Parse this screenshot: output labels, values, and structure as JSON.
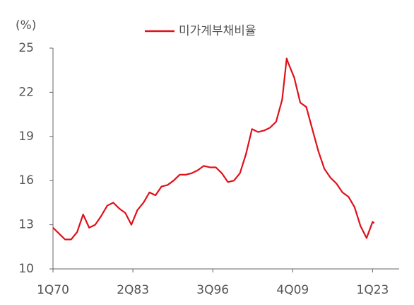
{
  "chart_data": {
    "type": "line",
    "y_label": "(%)",
    "x": [
      1970,
      1971,
      1972,
      1973,
      1974,
      1975,
      1976,
      1977,
      1978,
      1979,
      1980,
      1981,
      1982,
      1983,
      1984,
      1985,
      1986,
      1987,
      1988,
      1989,
      1990,
      1991,
      1992,
      1993,
      1994,
      1995,
      1996,
      1997,
      1998,
      1999,
      2000,
      2001,
      2002,
      2003,
      2004,
      2005,
      2006,
      2007,
      2008,
      2008.75,
      2009,
      2010,
      2011,
      2012,
      2013,
      2014,
      2015,
      2016,
      2017,
      2018,
      2019,
      2020,
      2021,
      2022,
      2023,
      2023.25
    ],
    "series": [
      {
        "name": "미가계부채비율",
        "color": "#e0101a",
        "values": [
          12.8,
          12.4,
          12.0,
          12.0,
          12.5,
          13.7,
          12.8,
          13.0,
          13.6,
          14.3,
          14.5,
          14.1,
          13.8,
          13.0,
          14.0,
          14.5,
          15.2,
          15.0,
          15.6,
          15.7,
          16.0,
          16.4,
          16.4,
          16.5,
          16.7,
          17.0,
          16.9,
          16.9,
          16.5,
          15.9,
          16.0,
          16.5,
          17.8,
          19.5,
          19.3,
          19.4,
          19.6,
          20.0,
          21.5,
          24.3,
          24.0,
          23.0,
          21.3,
          21.0,
          19.5,
          18.0,
          16.8,
          16.2,
          15.8,
          15.2,
          14.9,
          14.2,
          12.9,
          12.1,
          13.2,
          13.1
        ]
      }
    ],
    "xlim": [
      1970,
      2027.4
    ],
    "xticks": [
      {
        "value": 1970,
        "label": "1Q70"
      },
      {
        "value": 1983.25,
        "label": "2Q83"
      },
      {
        "value": 1996.5,
        "label": "3Q96"
      },
      {
        "value": 2009.75,
        "label": "4Q09"
      },
      {
        "value": 2023,
        "label": "1Q23"
      }
    ],
    "ylim": [
      10,
      25
    ],
    "yticks": [
      10,
      13,
      16,
      19,
      22,
      25
    ],
    "grid": false,
    "legend": "top"
  }
}
